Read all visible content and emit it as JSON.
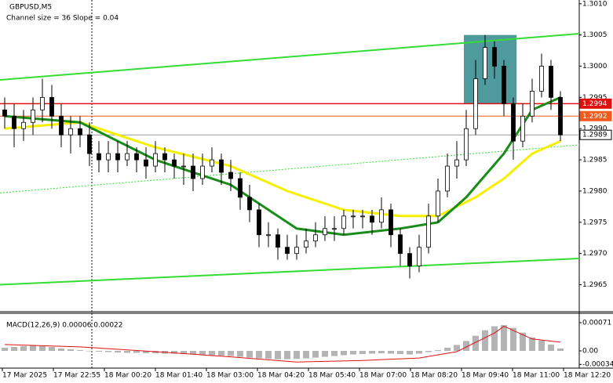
{
  "chart_data": {
    "type": "candlestick",
    "title": "GBPUSD,M5",
    "subtitle": "Channel size = 36 Slope = 0.04",
    "ylim": [
      1.29608,
      1.30106
    ],
    "yticks": [
      {
        "value": 1.301,
        "label": "1.3010"
      },
      1.3005,
      {
        "value": 1.3,
        "label": "1.3000"
      },
      1.2995,
      {
        "value": 1.299,
        "label": "1.2990"
      },
      1.2985,
      {
        "value": 1.298,
        "label": "1.2980"
      },
      1.2975,
      {
        "value": 1.297,
        "label": "1.2970"
      },
      1.2965
    ],
    "x_labels": [
      "17 Mar 2025",
      "17 Mar 22:55",
      "18 Mar 00:20",
      "18 Mar 01:40",
      "18 Mar 03:00",
      "18 Mar 04:20",
      "18 Mar 05:40",
      "18 Mar 07:00",
      "18 Mar 08:20",
      "18 Mar 09:40",
      "18 Mar 11:00",
      "18 Mar 12:20"
    ],
    "open": [
      1.2993,
      1.2992,
      1.299,
      1.2991,
      1.2993,
      1.2995,
      1.2992,
      1.2989,
      1.299,
      1.2989,
      1.2986,
      1.2985,
      1.2986,
      1.2985,
      1.2986,
      1.2985,
      1.2984,
      1.2986,
      1.2985,
      1.2984,
      1.2984,
      1.2982,
      1.2984,
      1.2985,
      1.2983,
      1.2982,
      1.2979,
      1.2977,
      1.2973,
      1.2973,
      1.2971,
      1.297,
      1.2971,
      1.2972,
      1.2973,
      1.2974,
      1.2974,
      1.2976,
      1.2976,
      1.2976,
      1.2975,
      1.2977,
      1.2973,
      1.297,
      1.2968,
      1.2971,
      1.2976,
      1.298,
      1.2984,
      1.2985,
      1.299,
      1.2998,
      1.3003,
      1.3,
      1.2994,
      1.2988,
      1.2992,
      1.2996,
      1.3,
      1.2995
    ],
    "high": [
      1.2995,
      1.2994,
      1.2993,
      1.2995,
      1.2998,
      1.2997,
      1.2994,
      1.2992,
      1.2992,
      1.2991,
      1.2988,
      1.2988,
      1.2988,
      1.2988,
      1.2987,
      1.2987,
      1.2988,
      1.2987,
      1.2986,
      1.2986,
      1.2986,
      1.2986,
      1.2987,
      1.2986,
      1.2985,
      1.2983,
      1.2981,
      1.2978,
      1.2975,
      1.2974,
      1.2973,
      1.2973,
      1.2974,
      1.2975,
      1.2976,
      1.2976,
      1.2977,
      1.2977,
      1.2977,
      1.2977,
      1.2979,
      1.2978,
      1.2974,
      1.2971,
      1.2973,
      1.2978,
      1.2982,
      1.2986,
      1.2988,
      1.2993,
      1.3001,
      1.3005,
      1.3004,
      1.3001,
      1.2995,
      1.2994,
      1.2998,
      1.3002,
      1.3001,
      1.2996
    ],
    "low": [
      1.299,
      1.2987,
      1.2988,
      1.2989,
      1.2991,
      1.299,
      1.2987,
      1.2986,
      1.2987,
      1.2984,
      1.2983,
      1.2983,
      1.2983,
      1.2984,
      1.2983,
      1.2982,
      1.2983,
      1.2983,
      1.2982,
      1.2981,
      1.298,
      1.2981,
      1.2983,
      1.2981,
      1.298,
      1.2977,
      1.2975,
      1.2971,
      1.2971,
      1.2969,
      1.2969,
      1.2969,
      1.297,
      1.2971,
      1.2972,
      1.2972,
      1.2973,
      1.2974,
      1.2974,
      1.2973,
      1.2974,
      1.2971,
      1.2968,
      1.2966,
      1.2967,
      1.297,
      1.2975,
      1.2979,
      1.2982,
      1.2984,
      1.2989,
      1.2997,
      1.2998,
      1.2992,
      1.2985,
      1.2987,
      1.2991,
      1.2995,
      1.2993,
      1.2988
    ],
    "close": [
      1.2992,
      1.299,
      1.2991,
      1.2993,
      1.2995,
      1.2992,
      1.2989,
      1.299,
      1.2989,
      1.2986,
      1.2985,
      1.2986,
      1.2985,
      1.2986,
      1.2985,
      1.2984,
      1.2986,
      1.2985,
      1.2984,
      1.2984,
      1.2982,
      1.2984,
      1.2985,
      1.2983,
      1.2982,
      1.2979,
      1.2977,
      1.2973,
      1.2973,
      1.2971,
      1.297,
      1.2971,
      1.2972,
      1.2973,
      1.2974,
      1.2974,
      1.2976,
      1.2976,
      1.2976,
      1.2975,
      1.2977,
      1.2973,
      1.297,
      1.2968,
      1.2971,
      1.2976,
      1.298,
      1.2984,
      1.2985,
      1.299,
      1.2998,
      1.3003,
      1.3,
      1.2994,
      1.2988,
      1.2992,
      1.2996,
      1.3,
      1.2995,
      1.2989
    ],
    "moving_averages": [
      {
        "color": "#f5f000",
        "x": [
          0,
          8,
          16,
          24,
          30,
          36,
          42,
          46,
          50,
          53,
          56,
          59
        ],
        "values": [
          1.299,
          1.2991,
          1.2987,
          1.2984,
          1.298,
          1.2977,
          1.2976,
          1.2976,
          1.2979,
          1.2982,
          1.2986,
          1.2988
        ]
      },
      {
        "color": "#1a8c1a",
        "x": [
          0,
          8,
          16,
          24,
          31,
          36,
          42,
          46,
          49,
          53,
          56,
          59
        ],
        "values": [
          1.2992,
          1.2991,
          1.2985,
          1.2981,
          1.2974,
          1.2973,
          1.2974,
          1.2975,
          1.2979,
          1.2986,
          1.2993,
          1.2995
        ]
      }
    ],
    "trend_lines": [
      {
        "color": "#33dd33",
        "start": 1.29978,
        "end": 1.30052
      },
      {
        "color": "#33dd33",
        "start": 1.2965,
        "end": 1.29692
      },
      {
        "color": "#33dd33",
        "start": 1.29797,
        "end": 1.29874,
        "dashed": true
      }
    ],
    "price_lines": [
      {
        "value": 1.2994,
        "color": "#e01010"
      },
      {
        "value": 1.2992,
        "color": "#f05a1e"
      },
      {
        "value": 1.2989,
        "color": "#999999"
      }
    ],
    "highlight": {
      "x": [
        48.75,
        54.35
      ],
      "y": [
        1.2994,
        1.3005
      ],
      "color": "#4f9a9c"
    },
    "macd": {
      "label": "MACD(12,26,9) 0.00006 0.00022",
      "ylim": [
        -0.000434,
        0.000947
      ],
      "yticks": [
        0.00071,
        {
          "value": 0,
          "label": "0.00"
        },
        -0.00034
      ],
      "histogram": [
        8e-05,
        0.0001,
        0.00012,
        0.00014,
        0.00012,
        0.0001,
        6e-05,
        4e-05,
        2e-05,
        0,
        -2e-05,
        -3e-05,
        -4e-05,
        -5e-05,
        -5e-05,
        -6e-05,
        -6e-05,
        -7e-05,
        -7e-05,
        -8e-05,
        -9e-05,
        -0.0001,
        -0.00011,
        -0.00012,
        -0.00013,
        -0.00015,
        -0.00017,
        -0.00019,
        -0.0002,
        -0.00021,
        -0.00021,
        -0.0002,
        -0.00019,
        -0.00017,
        -0.00015,
        -0.00013,
        -0.00011,
        -9e-05,
        -8e-05,
        -7e-05,
        -6e-05,
        -7e-05,
        -8e-05,
        -9e-05,
        -7e-05,
        -3e-05,
        2e-05,
        8e-05,
        0.00015,
        0.00025,
        0.00038,
        0.00052,
        0.00062,
        0.00065,
        0.00058,
        0.00046,
        0.00034,
        0.00026,
        0.00016,
        6e-05
      ],
      "signal": {
        "color": "#e01010",
        "x": [
          0,
          8,
          16,
          24,
          31,
          38,
          44,
          48,
          52,
          53,
          56,
          59
        ],
        "values": [
          0.00016,
          0.0001,
          -2e-05,
          -0.00015,
          -0.00028,
          -0.00024,
          -0.00018,
          -2e-05,
          0.00045,
          0.00062,
          0.0003,
          0.00022
        ]
      }
    }
  }
}
